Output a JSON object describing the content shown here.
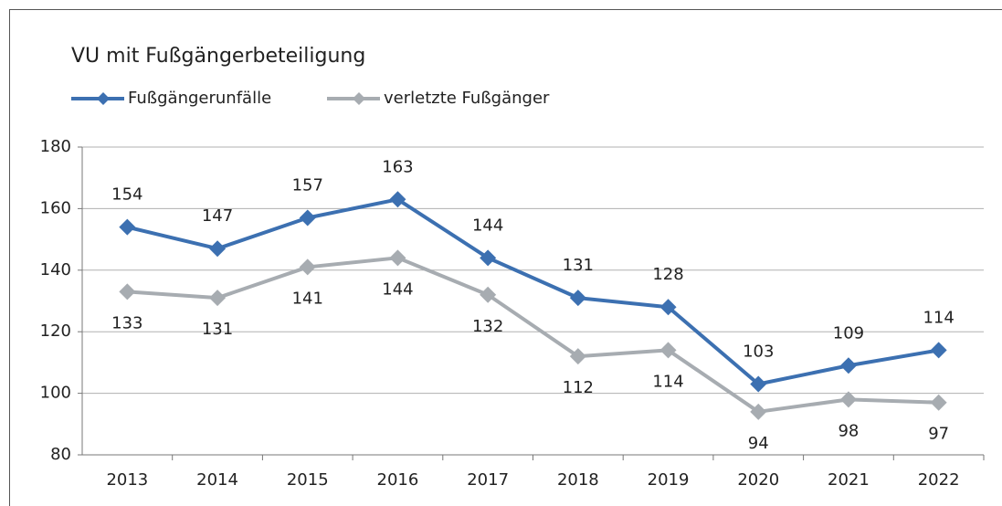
{
  "chart_data": {
    "type": "line",
    "title": "VU mit Fußgängerbeteiligung",
    "categories": [
      "2013",
      "2014",
      "2015",
      "2016",
      "2017",
      "2018",
      "2019",
      "2020",
      "2021",
      "2022"
    ],
    "series": [
      {
        "name": "Fußgängerunfälle",
        "color": "#3c70b1",
        "values": [
          154,
          147,
          157,
          163,
          144,
          131,
          128,
          103,
          109,
          114
        ]
      },
      {
        "name": "verletzte Fußgänger",
        "color": "#a7acb1",
        "values": [
          133,
          131,
          141,
          144,
          132,
          112,
          114,
          94,
          98,
          97
        ]
      }
    ],
    "ylim": [
      80,
      180
    ],
    "yticks": [
      80,
      100,
      120,
      140,
      160,
      180
    ],
    "grid": true,
    "legend": "top"
  }
}
